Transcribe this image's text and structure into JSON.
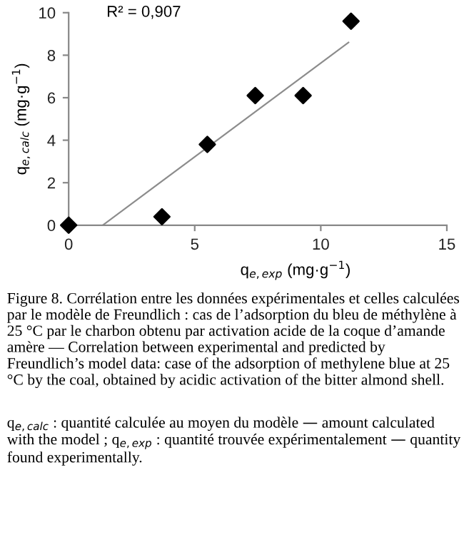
{
  "chart_data": {
    "type": "scatter",
    "xlabel": "q$_{e,exp}$ (mg·g$^{−1}$)",
    "ylabel": "q$_{e,calc}$ (mg·g$^{−1}$)",
    "series": [
      {
        "color": "#000000",
        "marker": "diamond",
        "x": [
          0,
          3.7,
          5.5,
          7.4,
          9.3,
          11.2
        ],
        "values": [
          0,
          0.4,
          3.8,
          6.1,
          6.1,
          9.6
        ]
      },
      {
        "type": "line",
        "color": "#8c8c8c",
        "x": [
          1.35,
          11.1
        ],
        "values": [
          0,
          8.6
        ]
      }
    ],
    "xlim": [
      0,
      15
    ],
    "xticks": [
      0,
      5,
      10,
      15
    ],
    "ylim": [
      0,
      10
    ],
    "yticks": [
      0,
      2,
      4,
      6,
      8,
      10
    ],
    "grid": false,
    "legend": false,
    "annotations": [
      "R² = 0,907",
      "Figure 8. Corrélation entre les données expérimentales et celles calculées par le modèle de Freundlich : cas de l’adsorption du bleu de méthylène à 25 °C par le charbon obtenu par activation acide de la coque d’amande amère — Correlation between experimental and predicted by Freundlich’s model data: case of the adsorption of methylene blue at 25 °C by the coal, obtained by acidic activation of the bitter almond shell.",
      "q$_{e,calc}$ : quantité calculée au moyen du modèle — amount calculated with the model ; q$_{e,exp}$ : quantité trouvée expérimentalement — quantity found experimentally."
    ]
  }
}
